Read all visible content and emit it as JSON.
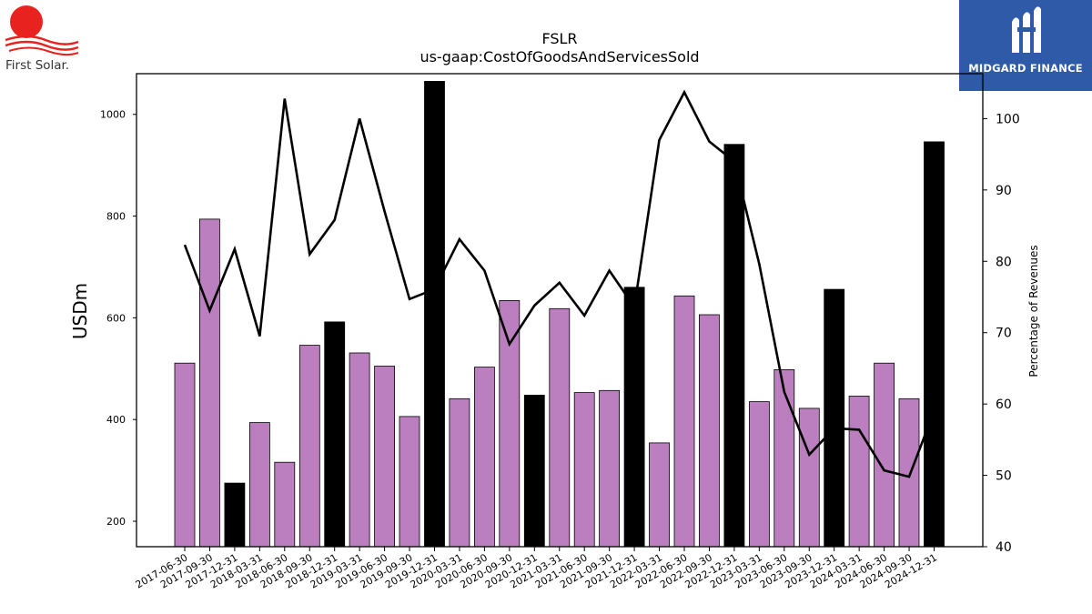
{
  "brand": {
    "left_logo_text": "First Solar.",
    "right_logo_text": "MIDGARD FINANCE",
    "right_logo_bg": "#2f5aa8",
    "left_logo_sun": "#e8231f"
  },
  "chart_data": {
    "type": "bar",
    "title": "FSLR",
    "subtitle": "us-gaap:CostOfGoodsAndServicesSold",
    "ylabel": "USDm",
    "y2label": "Percentage of Revenues",
    "ylim": [
      150,
      1080
    ],
    "y2lim": [
      40,
      106.3
    ],
    "yticks": [
      200,
      400,
      600,
      800,
      1000
    ],
    "y2ticks": [
      40,
      50,
      60,
      70,
      80,
      90,
      100
    ],
    "grid": false,
    "categories": [
      "2017-06-30",
      "2017-09-30",
      "2017-12-31",
      "2018-03-31",
      "2018-06-30",
      "2018-09-30",
      "2018-12-31",
      "2019-03-31",
      "2019-06-30",
      "2019-09-30",
      "2019-12-31",
      "2020-03-31",
      "2020-06-30",
      "2020-09-30",
      "2020-12-31",
      "2021-03-31",
      "2021-06-30",
      "2021-09-30",
      "2021-12-31",
      "2022-03-31",
      "2022-06-30",
      "2022-09-30",
      "2022-12-31",
      "2023-03-31",
      "2023-06-30",
      "2023-09-30",
      "2023-12-31",
      "2024-03-31",
      "2024-06-30",
      "2024-09-30",
      "2024-12-31"
    ],
    "series": [
      {
        "kind": "bar",
        "axis": "left",
        "values": [
          511,
          794,
          275,
          394,
          316,
          546,
          592,
          531,
          505,
          406,
          1065,
          441,
          503,
          634,
          448,
          618,
          453,
          457,
          660,
          354,
          643,
          606,
          941,
          435,
          498,
          422,
          656,
          446,
          511,
          441,
          946
        ],
        "year_end": [
          false,
          false,
          true,
          false,
          false,
          false,
          true,
          false,
          false,
          false,
          true,
          false,
          false,
          false,
          true,
          false,
          false,
          false,
          true,
          false,
          false,
          false,
          true,
          false,
          false,
          false,
          true,
          false,
          false,
          false,
          true
        ]
      },
      {
        "kind": "line",
        "axis": "right",
        "values": [
          82.3,
          73.1,
          81.7,
          69.5,
          102.8,
          81.0,
          85.8,
          100.0,
          87.0,
          74.7,
          76.1,
          83.1,
          78.7,
          68.4,
          73.8,
          77.0,
          72.4,
          78.7,
          73.6,
          97.0,
          103.7,
          96.8,
          94.0,
          79.6,
          61.7,
          52.9,
          56.6,
          56.4,
          50.7,
          49.8,
          59.0
        ]
      }
    ],
    "colors": {
      "bar_regular": "#bb7fbf",
      "bar_year_end": "#000000",
      "line": "#000000"
    }
  }
}
